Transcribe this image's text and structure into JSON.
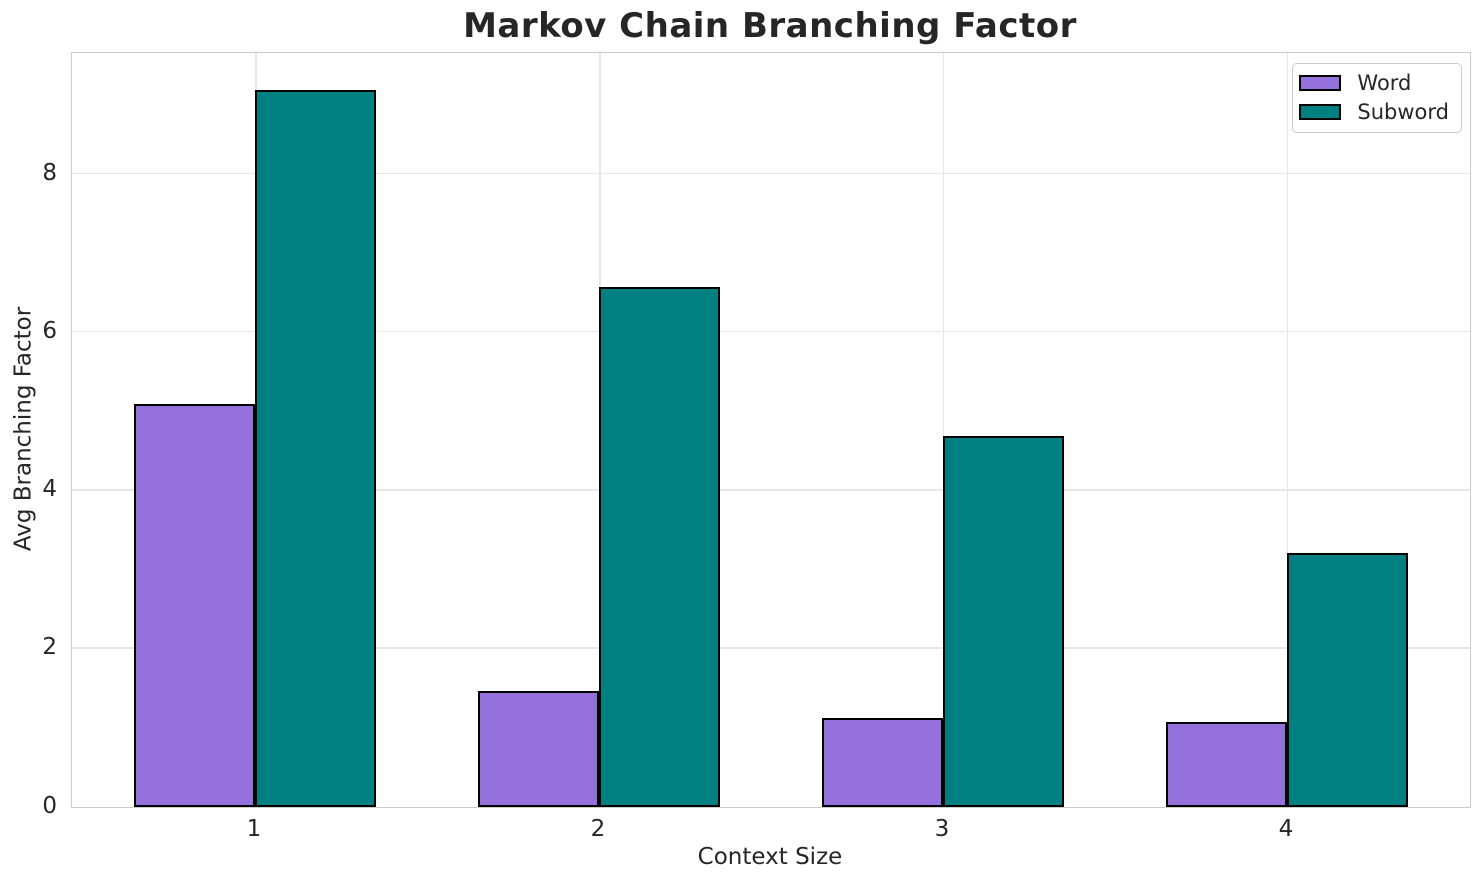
{
  "chart_data": {
    "type": "bar",
    "title": "Markov Chain Branching Factor",
    "xlabel": "Context Size",
    "ylabel": "Avg Branching Factor",
    "categories": [
      "1",
      "2",
      "3",
      "4"
    ],
    "series": [
      {
        "name": "Word",
        "color": "#9370DB",
        "values": [
          5.09,
          1.47,
          1.13,
          1.07
        ]
      },
      {
        "name": "Subword",
        "color": "#008080",
        "values": [
          9.06,
          6.57,
          4.69,
          3.21
        ]
      }
    ],
    "ylim": [
      0,
      9.53
    ],
    "yticks": [
      0,
      2,
      4,
      6,
      8
    ],
    "grid": true,
    "legend_position": "upper right",
    "bar_edge_color": "#000000",
    "colors": {
      "text": "#262626",
      "grid": "#e7e7e7",
      "spine": "#cccccc",
      "background": "#ffffff"
    }
  }
}
